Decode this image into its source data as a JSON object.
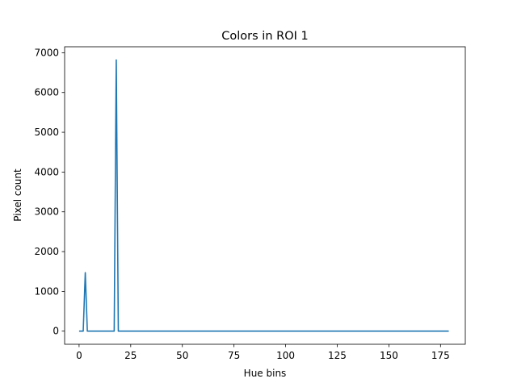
{
  "chart_data": {
    "type": "line",
    "title": "Colors in ROI 1",
    "xlabel": "Hue bins",
    "ylabel": "Pixel count",
    "xlim": [
      -7,
      187
    ],
    "ylim": [
      -330,
      7150
    ],
    "xticks": [
      0,
      25,
      50,
      75,
      100,
      125,
      150,
      175
    ],
    "yticks": [
      0,
      1000,
      2000,
      3000,
      4000,
      5000,
      6000,
      7000
    ],
    "grid": false,
    "legend": "none",
    "series_color": "#1f77b4",
    "x": [
      0,
      2,
      3,
      4,
      16,
      17,
      18,
      19,
      179
    ],
    "y": [
      0,
      0,
      1470,
      0,
      0,
      0,
      6820,
      0,
      0
    ]
  }
}
